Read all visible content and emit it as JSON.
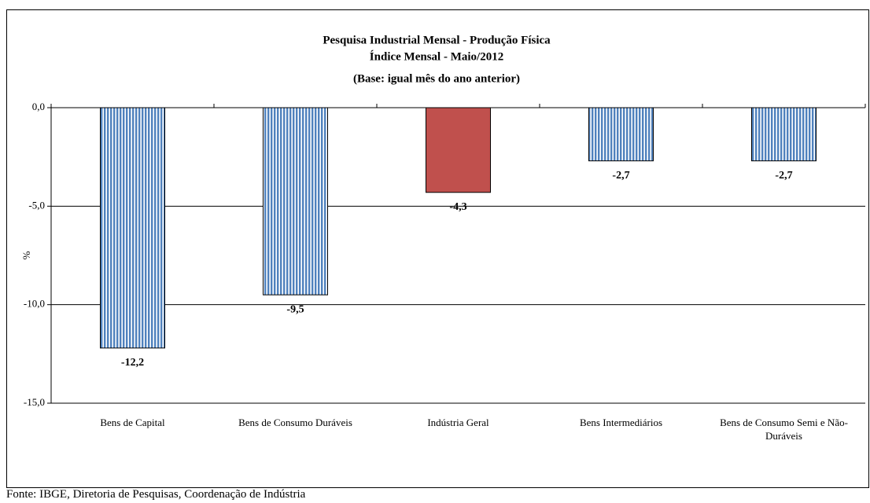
{
  "chart_data": {
    "type": "bar",
    "title": "Pesquisa Industrial Mensal - Produção Física",
    "subtitle": "Índice Mensal - Maio/2012",
    "subtitle2": "(Base: igual mês do ano anterior)",
    "y_label": "%",
    "categories": [
      "Bens de Capital",
      "Bens de Consumo Duráveis",
      "Indústria Geral",
      "Bens Intermediários",
      "Bens de Consumo Semi e Não-Duráveis"
    ],
    "values": [
      -12.2,
      -9.5,
      -4.3,
      -2.7,
      -2.7
    ],
    "value_labels": [
      "-12,2",
      "-9,5",
      "-4,3",
      "-2,7",
      "-2,7"
    ],
    "colors": [
      "#4f81bd",
      "#4f81bd",
      "#c0504d",
      "#4f81bd",
      "#4f81bd"
    ],
    "hatched": [
      true,
      true,
      false,
      true,
      true
    ],
    "ylim": [
      -15,
      0
    ],
    "yticks": [
      {
        "value": 0,
        "label": "0,0"
      },
      {
        "value": -5,
        "label": "-5,0"
      },
      {
        "value": -10,
        "label": "-10,0"
      },
      {
        "value": -15,
        "label": "-15,0"
      }
    ],
    "grid": true,
    "source": "Fonte: IBGE, Diretoria de Pesquisas, Coordenação de Indústria"
  }
}
